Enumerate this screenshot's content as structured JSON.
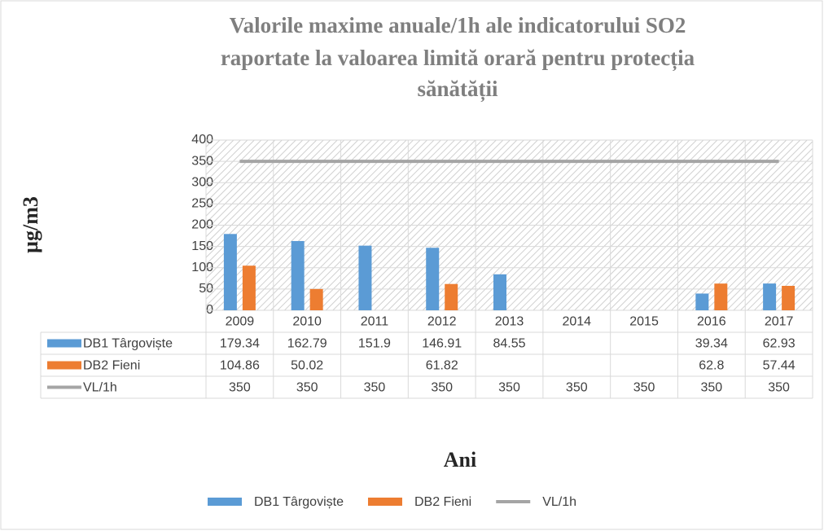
{
  "chart_data": {
    "type": "bar",
    "title": [
      "Valorile maxime anuale/1h ale indicatorului SO2",
      "raportate la valoarea limită orară pentru protecția",
      "sănătății"
    ],
    "y_label": "µg/m3",
    "x_label": "Ani",
    "categories": [
      "2009",
      "2010",
      "2011",
      "2012",
      "2013",
      "2014",
      "2015",
      "2016",
      "2017"
    ],
    "series": [
      {
        "name": "DB1 Târgoviște",
        "color": "#5b9bd5",
        "type": "bar",
        "values": [
          179.34,
          162.79,
          151.9,
          146.91,
          84.55,
          null,
          null,
          39.34,
          62.93
        ]
      },
      {
        "name": "DB2 Fieni",
        "color": "#ed7d31",
        "type": "bar",
        "values": [
          104.86,
          50.02,
          null,
          61.82,
          null,
          null,
          null,
          62.8,
          57.44
        ]
      },
      {
        "name": "VL/1h",
        "color": "#a5a5a5",
        "type": "line",
        "values": [
          350,
          350,
          350,
          350,
          350,
          350,
          350,
          350,
          350
        ]
      }
    ],
    "ylim": [
      0,
      400
    ],
    "yticks": [
      0,
      50,
      100,
      150,
      200,
      250,
      300,
      350,
      400
    ],
    "grid": true,
    "legend": "bottom",
    "data_table": true
  }
}
